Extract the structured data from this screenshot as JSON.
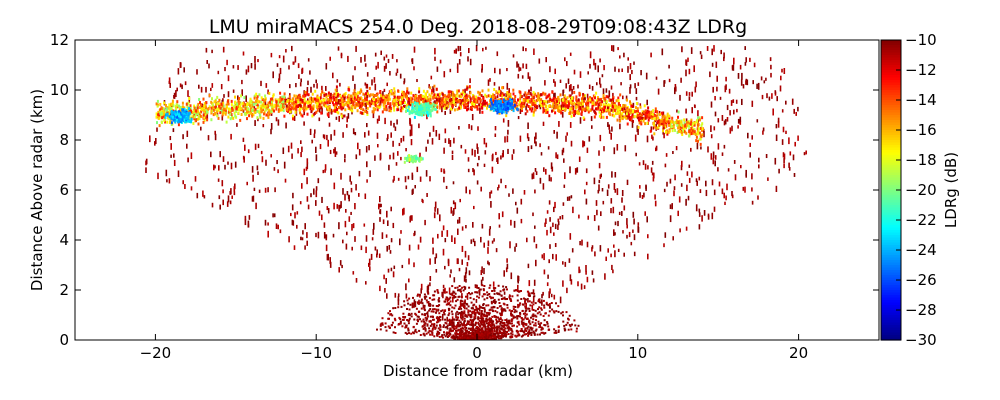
{
  "chart_data": {
    "type": "heatmap",
    "title": "LMU miraMACS 254.0 Deg. 2018-08-29T09:08:43Z  LDRg",
    "xlabel": "Distance from radar (km)",
    "ylabel": "Distance Above radar  (km)",
    "xlim": [
      -25,
      25
    ],
    "ylim": [
      0,
      12
    ],
    "x_ticks": [
      -20,
      -10,
      0,
      10,
      20
    ],
    "y_ticks": [
      0,
      2,
      4,
      6,
      8,
      10,
      12
    ],
    "colorbar": {
      "label": "LDRg (dB)",
      "range": [
        -30,
        -10
      ],
      "colormap": "jet",
      "ticks": [
        -10,
        -12,
        -14,
        -16,
        -18,
        -20,
        -22,
        -24,
        -26,
        -28,
        -30
      ]
    },
    "features": [
      {
        "name": "cloud layer",
        "x_range": [
          -20,
          14
        ],
        "height_km": [
          8.5,
          10.2
        ],
        "ldr_db": [
          -22,
          -12
        ]
      },
      {
        "name": "low LDR patch",
        "x_center": -18.5,
        "height_km": 9.0,
        "ldr_db": -24
      },
      {
        "name": "low LDR patch",
        "x_center": 1.5,
        "height_km": 9.4,
        "ldr_db": -25
      },
      {
        "name": "low LDR patch",
        "x_center": -3.5,
        "height_km": 9.3,
        "ldr_db": -21
      },
      {
        "name": "small echo",
        "x_center": -4.0,
        "height_km": 7.3,
        "ldr_db": -20
      },
      {
        "name": "near-radar clutter",
        "x_range": [
          -6,
          6
        ],
        "height_km": [
          0,
          2
        ],
        "ldr_db": -10
      }
    ]
  }
}
